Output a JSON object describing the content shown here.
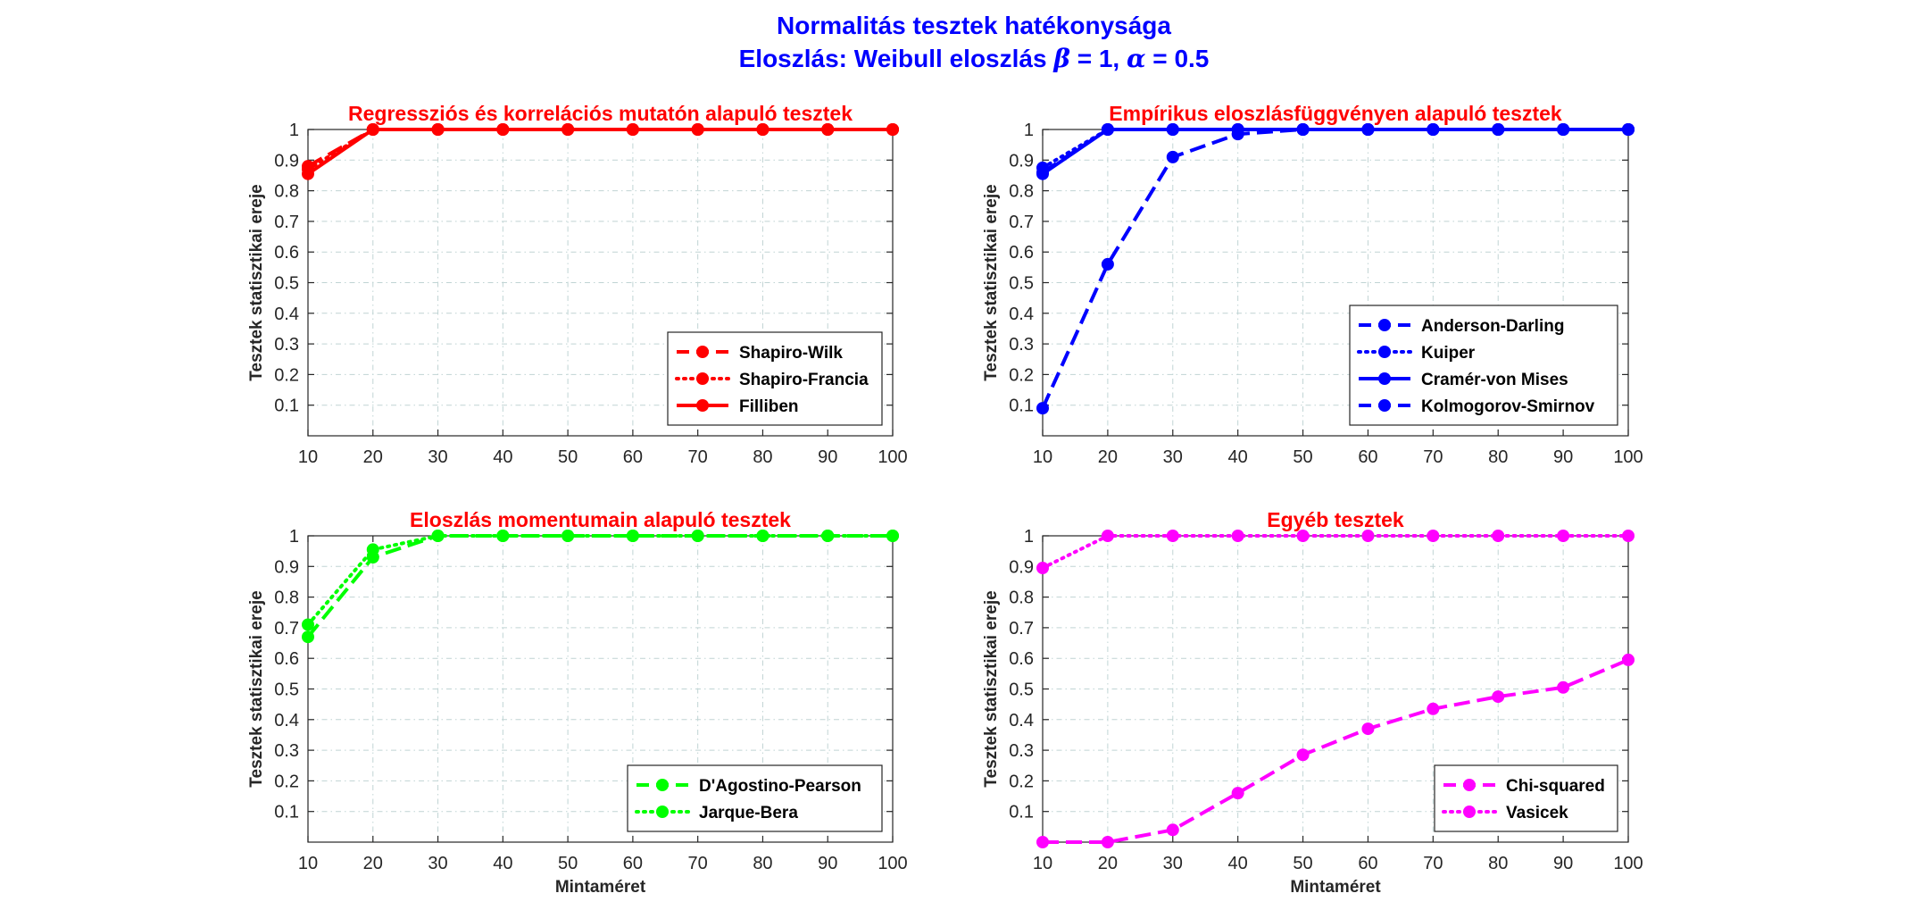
{
  "figure": {
    "title_line1": "Normalitás tesztek hatékonysága",
    "title_line2_prefix": "Eloszlás: Weibull eloszlás ",
    "title_beta": "β",
    "title_beta_value": " = 1, ",
    "title_alpha": "α",
    "title_alpha_value": " = 0.5",
    "title_color": "#0000ff"
  },
  "chart_data": [
    {
      "type": "line",
      "title": "Regressziós és korrelációs mutatón alapuló tesztek",
      "title_color": "#ff0000",
      "xlabel": "",
      "ylabel": "Tesztek statisztikai ereje",
      "x": [
        10,
        20,
        30,
        40,
        50,
        60,
        70,
        80,
        90,
        100
      ],
      "xlim": [
        10,
        100
      ],
      "ylim": [
        0,
        1
      ],
      "xticks": [
        "10",
        "20",
        "30",
        "40",
        "50",
        "60",
        "70",
        "80",
        "90",
        "100"
      ],
      "yticks": [
        "0.1",
        "0.2",
        "0.3",
        "0.4",
        "0.5",
        "0.6",
        "0.7",
        "0.8",
        "0.9",
        "1"
      ],
      "grid": true,
      "legend_position": "bottom-right",
      "series": [
        {
          "name": "Shapiro-Wilk",
          "color": "#ff0000",
          "linestyle": "dashed",
          "values": [
            0.88,
            1,
            1,
            1,
            1,
            1,
            1,
            1,
            1,
            1
          ]
        },
        {
          "name": "Shapiro-Francia",
          "color": "#ff0000",
          "linestyle": "dotted",
          "values": [
            0.87,
            1,
            1,
            1,
            1,
            1,
            1,
            1,
            1,
            1
          ]
        },
        {
          "name": "Filliben",
          "color": "#ff0000",
          "linestyle": "solid",
          "values": [
            0.855,
            1,
            1,
            1,
            1,
            1,
            1,
            1,
            1,
            1
          ]
        }
      ]
    },
    {
      "type": "line",
      "title": "Empírikus eloszlásfüggvényen alapuló tesztek",
      "title_color": "#ff0000",
      "xlabel": "",
      "ylabel": "Tesztek statisztikai ereje",
      "x": [
        10,
        20,
        30,
        40,
        50,
        60,
        70,
        80,
        90,
        100
      ],
      "xlim": [
        10,
        100
      ],
      "ylim": [
        0,
        1
      ],
      "xticks": [
        "10",
        "20",
        "30",
        "40",
        "50",
        "60",
        "70",
        "80",
        "90",
        "100"
      ],
      "yticks": [
        "0.1",
        "0.2",
        "0.3",
        "0.4",
        "0.5",
        "0.6",
        "0.7",
        "0.8",
        "0.9",
        "1"
      ],
      "grid": true,
      "legend_position": "bottom-right",
      "series": [
        {
          "name": "Anderson-Darling",
          "color": "#0000ff",
          "linestyle": "dashed",
          "values": [
            0.86,
            1,
            1,
            1,
            1,
            1,
            1,
            1,
            1,
            1
          ]
        },
        {
          "name": "Kuiper",
          "color": "#0000ff",
          "linestyle": "dotted",
          "values": [
            0.875,
            1,
            1,
            1,
            1,
            1,
            1,
            1,
            1,
            1
          ]
        },
        {
          "name": "Cramér-von Mises",
          "color": "#0000ff",
          "linestyle": "solid",
          "values": [
            0.855,
            1,
            1,
            1,
            1,
            1,
            1,
            1,
            1,
            1
          ]
        },
        {
          "name": "Kolmogorov-Smirnov",
          "color": "#0000ff",
          "linestyle": "dashed",
          "values": [
            0.09,
            0.56,
            0.91,
            0.985,
            1,
            1,
            1,
            1,
            1,
            1
          ]
        }
      ]
    },
    {
      "type": "line",
      "title": "Eloszlás momentumain alapuló tesztek",
      "title_color": "#ff0000",
      "xlabel": "Mintaméret",
      "ylabel": "Tesztek statisztikai ereje",
      "x": [
        10,
        20,
        30,
        40,
        50,
        60,
        70,
        80,
        90,
        100
      ],
      "xlim": [
        10,
        100
      ],
      "ylim": [
        0,
        1
      ],
      "xticks": [
        "10",
        "20",
        "30",
        "40",
        "50",
        "60",
        "70",
        "80",
        "90",
        "100"
      ],
      "yticks": [
        "0.1",
        "0.2",
        "0.3",
        "0.4",
        "0.5",
        "0.6",
        "0.7",
        "0.8",
        "0.9",
        "1"
      ],
      "grid": true,
      "legend_position": "bottom-right",
      "series": [
        {
          "name": "D'Agostino-Pearson",
          "color": "#00ff00",
          "linestyle": "dashed",
          "values": [
            0.67,
            0.93,
            1,
            1,
            1,
            1,
            1,
            1,
            1,
            1
          ]
        },
        {
          "name": "Jarque-Bera",
          "color": "#00ff00",
          "linestyle": "dotted",
          "values": [
            0.71,
            0.955,
            1,
            1,
            1,
            1,
            1,
            1,
            1,
            1
          ]
        }
      ]
    },
    {
      "type": "line",
      "title": "Egyéb tesztek",
      "title_color": "#ff0000",
      "xlabel": "Mintaméret",
      "ylabel": "Tesztek statisztikai ereje",
      "x": [
        10,
        20,
        30,
        40,
        50,
        60,
        70,
        80,
        90,
        100
      ],
      "xlim": [
        10,
        100
      ],
      "ylim": [
        0,
        1
      ],
      "xticks": [
        "10",
        "20",
        "30",
        "40",
        "50",
        "60",
        "70",
        "80",
        "90",
        "100"
      ],
      "yticks": [
        "0.1",
        "0.2",
        "0.3",
        "0.4",
        "0.5",
        "0.6",
        "0.7",
        "0.8",
        "0.9",
        "1"
      ],
      "grid": true,
      "legend_position": "bottom-right",
      "series": [
        {
          "name": "Chi-squared",
          "color": "#ff00ff",
          "linestyle": "dashed",
          "values": [
            0,
            0,
            0.04,
            0.16,
            0.285,
            0.37,
            0.435,
            0.475,
            0.505,
            0.595
          ]
        },
        {
          "name": "Vasicek",
          "color": "#ff00ff",
          "linestyle": "dotted",
          "values": [
            0.895,
            1,
            1,
            1,
            1,
            1,
            1,
            1,
            1,
            1
          ]
        }
      ]
    }
  ]
}
